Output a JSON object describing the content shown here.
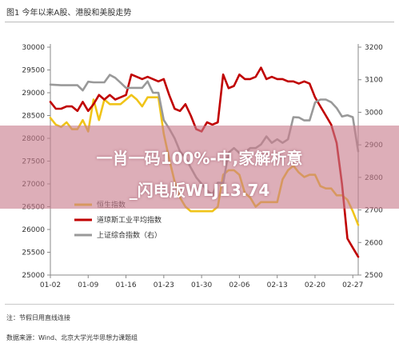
{
  "figure_title": "图1 今年以来A股、港股和美股走势",
  "banner": {
    "line1": "一肖一码100%-中,家解析意",
    "line2": "_闪电版WLJ13.74"
  },
  "notes": {
    "unit": "注：节假日用直线连接",
    "source": "数据来源：Wind、北京大学光华思想力课题组"
  },
  "chart_data": {
    "type": "line",
    "title": "",
    "xlabel": "",
    "ylabel": "",
    "x": [
      "01-02",
      "01-03",
      "01-04",
      "01-05",
      "01-06",
      "01-07",
      "01-08",
      "01-09",
      "01-10",
      "01-11",
      "01-12",
      "01-13",
      "01-14",
      "01-15",
      "01-16",
      "01-17",
      "01-18",
      "01-19",
      "01-20",
      "01-21",
      "01-22",
      "01-23",
      "01-24",
      "01-25",
      "01-26",
      "01-27",
      "01-28",
      "01-29",
      "01-30",
      "01-31",
      "02-01",
      "02-02",
      "02-03",
      "02-04",
      "02-05",
      "02-06",
      "02-07",
      "02-08",
      "02-09",
      "02-10",
      "02-11",
      "02-12",
      "02-13",
      "02-14",
      "02-15",
      "02-16",
      "02-17",
      "02-18",
      "02-19",
      "02-20",
      "02-21",
      "02-22",
      "02-23",
      "02-24",
      "02-25",
      "02-26",
      "02-27",
      "02-28"
    ],
    "x_ticks": [
      "01-02",
      "01-09",
      "01-16",
      "01-23",
      "01-30",
      "02-06",
      "02-13",
      "02-20",
      "02-27"
    ],
    "y_left": {
      "min": 25000,
      "max": 30000,
      "ticks": [
        25000,
        25500,
        26000,
        26500,
        27000,
        27500,
        28000,
        28500,
        29000,
        29500,
        30000
      ]
    },
    "y_right": {
      "min": 2500,
      "max": 3200,
      "ticks": [
        2500,
        2600,
        2700,
        2800,
        2900,
        3000,
        3100,
        3200
      ]
    },
    "grid": false,
    "legend_position": "bottom-left",
    "series": [
      {
        "name": "恒生指数",
        "axis": "left",
        "color": "#f0c419",
        "points": [
          [
            "01-02",
            28450
          ],
          [
            "01-03",
            28300
          ],
          [
            "01-04",
            28250
          ],
          [
            "01-05",
            28350
          ],
          [
            "01-06",
            28200
          ],
          [
            "01-07",
            28200
          ],
          [
            "01-08",
            28400
          ],
          [
            "01-09",
            28150
          ],
          [
            "01-10",
            28850
          ],
          [
            "01-11",
            28400
          ],
          [
            "01-12",
            28850
          ],
          [
            "01-13",
            28750
          ],
          [
            "01-14",
            28750
          ],
          [
            "01-15",
            28750
          ],
          [
            "01-16",
            28850
          ],
          [
            "01-17",
            28950
          ],
          [
            "01-18",
            28850
          ],
          [
            "01-19",
            28700
          ],
          [
            "01-20",
            28900
          ],
          [
            "01-21",
            28900
          ],
          [
            "01-22",
            28900
          ],
          [
            "01-23",
            28100
          ],
          [
            "01-24",
            27550
          ],
          [
            "01-25",
            27050
          ],
          [
            "01-26",
            26700
          ],
          [
            "01-27",
            26500
          ],
          [
            "01-28",
            26400
          ],
          [
            "01-29",
            26400
          ],
          [
            "01-30",
            26400
          ],
          [
            "01-31",
            26400
          ],
          [
            "02-01",
            26400
          ],
          [
            "02-02",
            26500
          ],
          [
            "02-03",
            27200
          ],
          [
            "02-04",
            27300
          ],
          [
            "02-05",
            27300
          ],
          [
            "02-06",
            27200
          ],
          [
            "02-07",
            26800
          ],
          [
            "02-08",
            26700
          ],
          [
            "02-09",
            26500
          ],
          [
            "02-10",
            26600
          ],
          [
            "02-11",
            26600
          ],
          [
            "02-12",
            26600
          ],
          [
            "02-13",
            26600
          ],
          [
            "02-14",
            27100
          ],
          [
            "02-15",
            27300
          ],
          [
            "02-16",
            27400
          ],
          [
            "02-17",
            27250
          ],
          [
            "02-18",
            27150
          ],
          [
            "02-19",
            27200
          ],
          [
            "02-20",
            27200
          ],
          [
            "02-21",
            26950
          ],
          [
            "02-22",
            26900
          ],
          [
            "02-23",
            26900
          ],
          [
            "02-24",
            26750
          ],
          [
            "02-25",
            26750
          ],
          [
            "02-26",
            26650
          ],
          [
            "02-27",
            26400
          ],
          [
            "02-28",
            26100
          ]
        ]
      },
      {
        "name": "道琼斯工业平均指数",
        "axis": "left",
        "color": "#c00000",
        "points": [
          [
            "01-02",
            28800
          ],
          [
            "01-03",
            28650
          ],
          [
            "01-04",
            28650
          ],
          [
            "01-05",
            28700
          ],
          [
            "01-06",
            28700
          ],
          [
            "01-07",
            28600
          ],
          [
            "01-08",
            28800
          ],
          [
            "01-09",
            28600
          ],
          [
            "01-10",
            28750
          ],
          [
            "01-11",
            28950
          ],
          [
            "01-12",
            28850
          ],
          [
            "01-13",
            28950
          ],
          [
            "01-14",
            28850
          ],
          [
            "01-15",
            28900
          ],
          [
            "01-16",
            28950
          ],
          [
            "01-17",
            29400
          ],
          [
            "01-18",
            29350
          ],
          [
            "01-19",
            29300
          ],
          [
            "01-20",
            29350
          ],
          [
            "01-21",
            29300
          ],
          [
            "01-22",
            29250
          ],
          [
            "01-23",
            29300
          ],
          [
            "01-24",
            28950
          ],
          [
            "01-25",
            28650
          ],
          [
            "01-26",
            28600
          ],
          [
            "01-27",
            28750
          ],
          [
            "01-28",
            28500
          ],
          [
            "01-29",
            28200
          ],
          [
            "01-30",
            28150
          ],
          [
            "01-31",
            28350
          ],
          [
            "02-01",
            28300
          ],
          [
            "02-02",
            28350
          ],
          [
            "02-03",
            29400
          ],
          [
            "02-04",
            29100
          ],
          [
            "02-05",
            29150
          ],
          [
            "02-06",
            29400
          ],
          [
            "02-07",
            29300
          ],
          [
            "02-08",
            29300
          ],
          [
            "02-09",
            29350
          ],
          [
            "02-10",
            29550
          ],
          [
            "02-11",
            29300
          ],
          [
            "02-12",
            29350
          ],
          [
            "02-13",
            29300
          ],
          [
            "02-14",
            29300
          ],
          [
            "02-15",
            29250
          ],
          [
            "02-16",
            29250
          ],
          [
            "02-17",
            29200
          ],
          [
            "02-18",
            29250
          ],
          [
            "02-19",
            29200
          ],
          [
            "02-20",
            28900
          ],
          [
            "02-21",
            28700
          ],
          [
            "02-22",
            28500
          ],
          [
            "02-23",
            28300
          ],
          [
            "02-24",
            27900
          ],
          [
            "02-25",
            27000
          ],
          [
            "02-26",
            25800
          ],
          [
            "02-27",
            25600
          ],
          [
            "02-28",
            25400
          ]
        ]
      },
      {
        "name": "上证综合指数（右）",
        "axis": "right",
        "color": "#999999",
        "points": [
          [
            "01-02",
            3085
          ],
          [
            "01-03",
            3084
          ],
          [
            "01-04",
            3083
          ],
          [
            "01-05",
            3083
          ],
          [
            "01-06",
            3083
          ],
          [
            "01-07",
            3083
          ],
          [
            "01-08",
            3067
          ],
          [
            "01-09",
            3094
          ],
          [
            "01-10",
            3092
          ],
          [
            "01-11",
            3092
          ],
          [
            "01-12",
            3092
          ],
          [
            "01-13",
            3115
          ],
          [
            "01-14",
            3106
          ],
          [
            "01-15",
            3091
          ],
          [
            "01-16",
            3075
          ],
          [
            "01-17",
            3075
          ],
          [
            "01-18",
            3075
          ],
          [
            "01-19",
            3075
          ],
          [
            "01-20",
            3095
          ],
          [
            "01-21",
            3060
          ],
          [
            "01-22",
            3060
          ],
          [
            "01-23",
            2976
          ],
          [
            "01-24",
            2950
          ],
          [
            "01-25",
            2920
          ],
          [
            "01-26",
            2880
          ],
          [
            "01-27",
            2860
          ],
          [
            "01-28",
            2830
          ],
          [
            "01-29",
            2800
          ],
          [
            "01-30",
            2780
          ],
          [
            "01-31",
            2760
          ],
          [
            "02-01",
            2746
          ],
          [
            "02-02",
            2784
          ],
          [
            "02-03",
            2783
          ],
          [
            "02-04",
            2876
          ],
          [
            "02-05",
            2890
          ],
          [
            "02-06",
            2875
          ],
          [
            "02-07",
            2876
          ],
          [
            "02-08",
            2890
          ],
          [
            "02-09",
            2890
          ],
          [
            "02-10",
            2901
          ],
          [
            "02-11",
            2926
          ],
          [
            "02-12",
            2906
          ],
          [
            "02-13",
            2917
          ],
          [
            "02-14",
            2906
          ],
          [
            "02-15",
            2917
          ],
          [
            "02-16",
            2985
          ],
          [
            "02-17",
            2984
          ],
          [
            "02-18",
            2975
          ],
          [
            "02-19",
            2975
          ],
          [
            "02-20",
            3030
          ],
          [
            "02-21",
            3039
          ],
          [
            "02-22",
            3039
          ],
          [
            "02-23",
            3031
          ],
          [
            "02-24",
            3013
          ],
          [
            "02-25",
            2987
          ],
          [
            "02-26",
            2991
          ],
          [
            "02-27",
            2985
          ],
          [
            "02-28",
            2880
          ]
        ]
      }
    ]
  }
}
